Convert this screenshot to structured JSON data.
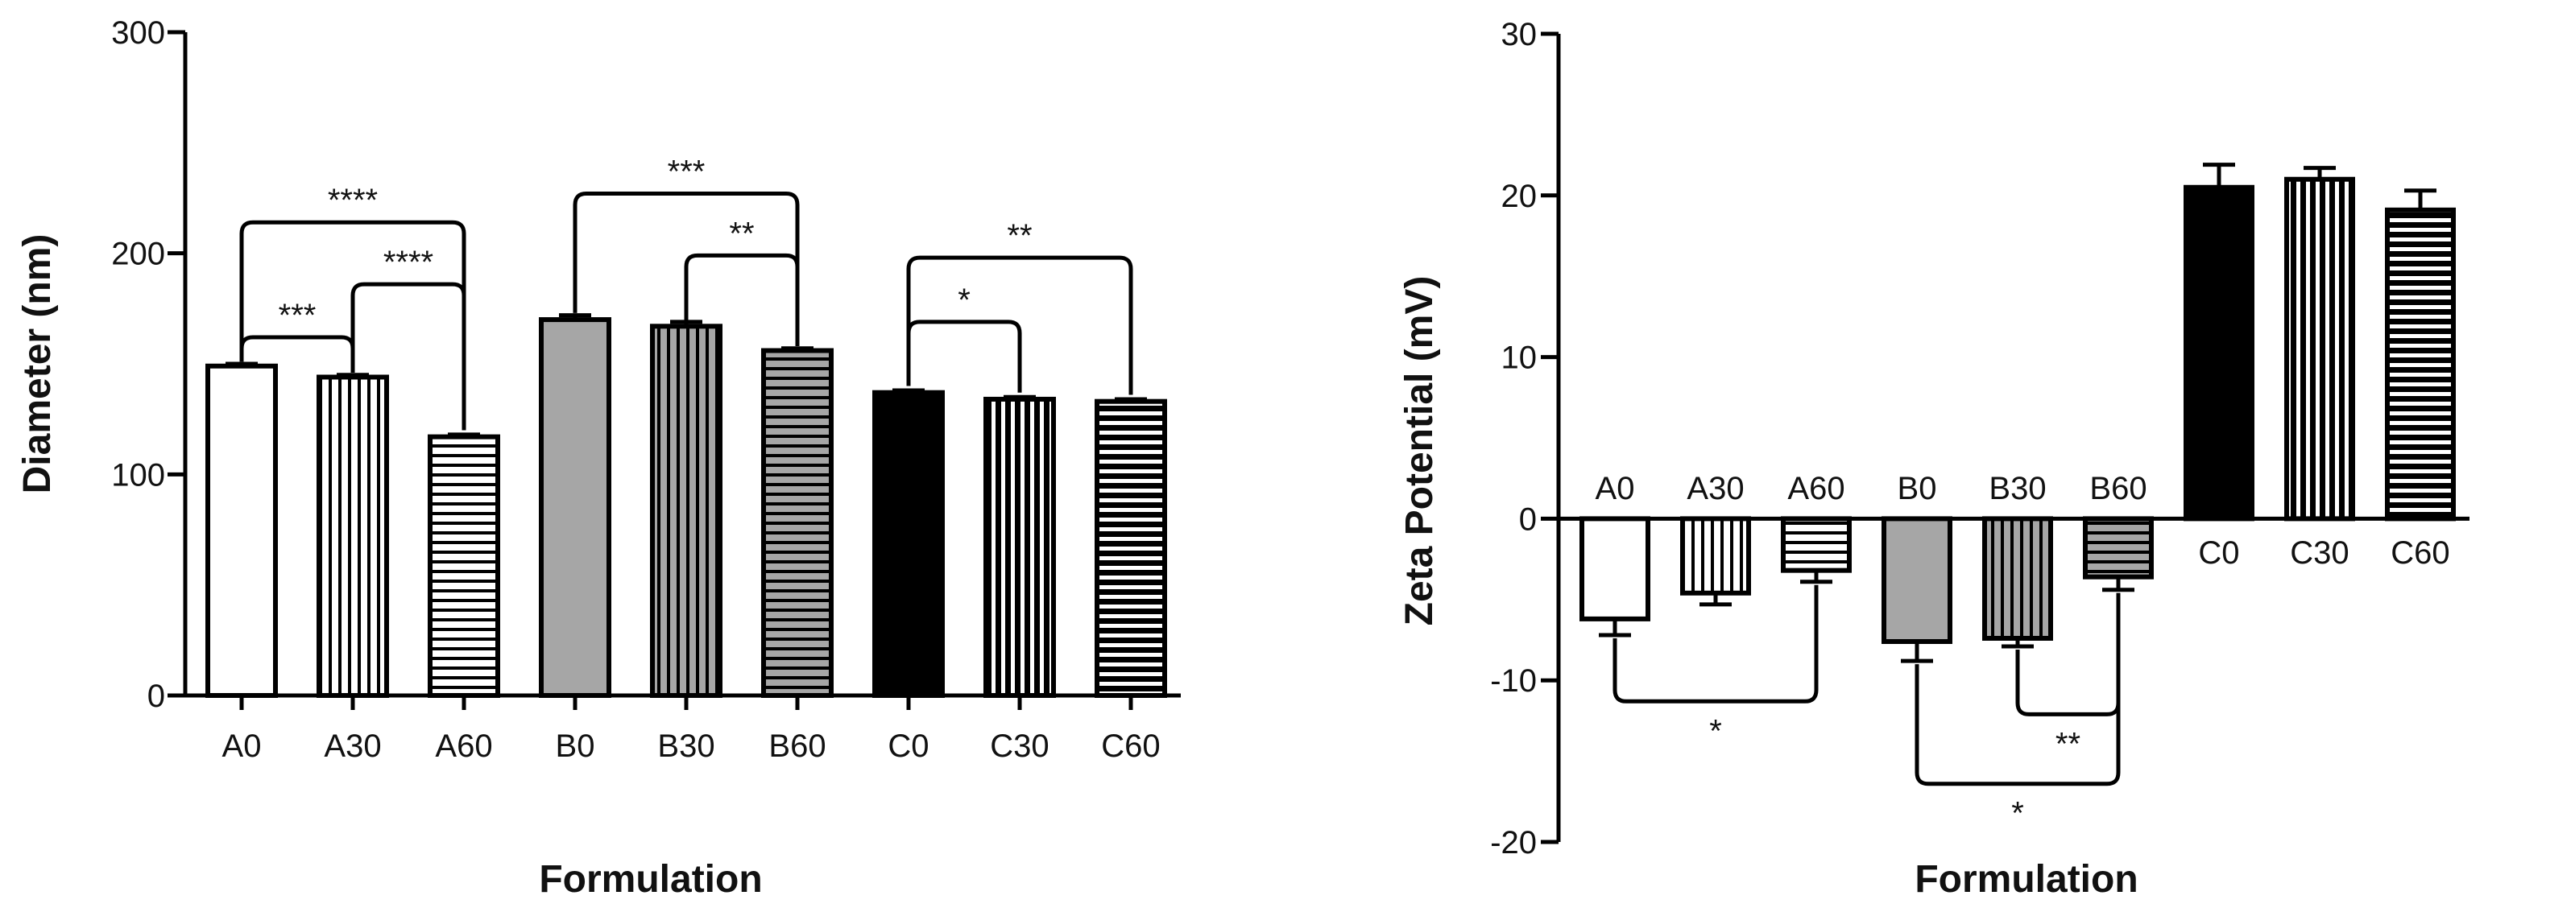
{
  "chart_data": [
    {
      "type": "bar",
      "title": "",
      "xlabel": "Formulation",
      "ylabel": "Diameter  (nm)",
      "ylim": [
        0,
        300
      ],
      "yticks": [
        "0",
        "100",
        "200",
        "300"
      ],
      "grid": false,
      "legend": "none",
      "categories": [
        "A0",
        "A30",
        "A60",
        "B0",
        "B30",
        "B60",
        "C0",
        "C30",
        "C60"
      ],
      "values": [
        149,
        144,
        117,
        170,
        167,
        156,
        137,
        134,
        133
      ],
      "errors": [
        1,
        1,
        1,
        2,
        2,
        1,
        1,
        1,
        1
      ],
      "fills": [
        "white",
        "vertical-stripes",
        "horizontal-stripes",
        "gray",
        "gray-vertical-stripes",
        "gray-horizontal-stripes",
        "black",
        "black-vertical-stripes",
        "black-horizontal-stripes"
      ],
      "significance": [
        {
          "from": 0,
          "to": 1,
          "label": "***",
          "y": 162,
          "tips": [
            151,
            146
          ]
        },
        {
          "from": 1,
          "to": 2,
          "label": "****",
          "y": 186,
          "tips": [
            146,
            120
          ]
        },
        {
          "from": 0,
          "to": 2,
          "label": "****",
          "y": 214,
          "tips": [
            151,
            120
          ]
        },
        {
          "from": 4,
          "to": 5,
          "label": "**",
          "y": 199,
          "tips": [
            169,
            158
          ]
        },
        {
          "from": 3,
          "to": 5,
          "label": "***",
          "y": 227,
          "tips": [
            173,
            158
          ]
        },
        {
          "from": 6,
          "to": 7,
          "label": "*",
          "y": 169,
          "tips": [
            140,
            137
          ]
        },
        {
          "from": 6,
          "to": 8,
          "label": "**",
          "y": 198,
          "tips": [
            140,
            136
          ]
        }
      ]
    },
    {
      "type": "bar",
      "title": "",
      "xlabel": "Formulation",
      "ylabel": "Zeta Potential (mV)",
      "ylim": [
        -20,
        30
      ],
      "yticks": [
        "-20",
        "-10",
        "0",
        "10",
        "20",
        "30"
      ],
      "grid": false,
      "legend": "none",
      "categories": [
        "A0",
        "A30",
        "A60",
        "B0",
        "B30",
        "B60",
        "C0",
        "C30",
        "C60"
      ],
      "values": [
        -6.2,
        -4.6,
        -3.2,
        -7.6,
        -7.4,
        -3.6,
        20.5,
        21.0,
        19.1
      ],
      "errors": [
        1.0,
        0.7,
        0.7,
        1.2,
        0.5,
        0.8,
        1.4,
        0.7,
        1.2
      ],
      "fills": [
        "white",
        "vertical-stripes",
        "horizontal-stripes",
        "gray",
        "gray-vertical-stripes",
        "gray-horizontal-stripes",
        "black",
        "black-vertical-stripes",
        "black-horizontal-stripes"
      ],
      "significance": [
        {
          "from": 0,
          "to": 2,
          "label": "*",
          "y": -11.3,
          "tips": [
            -7.4,
            -4.1
          ]
        },
        {
          "from": 4,
          "to": 5,
          "label": "**",
          "y": -12.1,
          "tips": [
            -8.1,
            -4.6
          ]
        },
        {
          "from": 3,
          "to": 5,
          "label": "*",
          "y": -16.4,
          "tips": [
            -9.0,
            -4.6
          ]
        }
      ]
    }
  ]
}
